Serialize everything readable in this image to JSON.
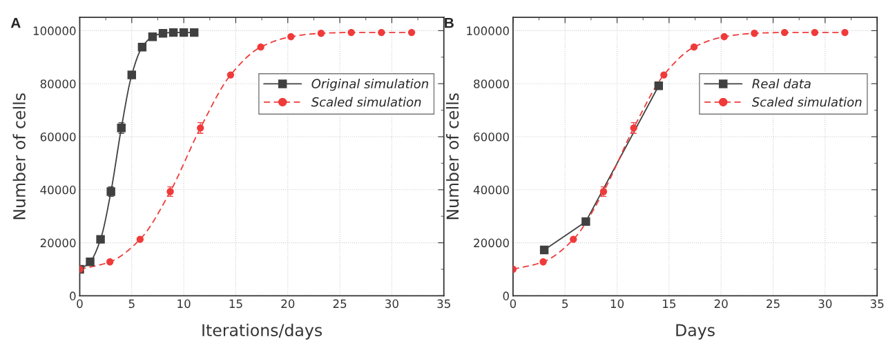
{
  "chart_data": [
    {
      "type": "line",
      "title": "A",
      "xlabel": "Iterations/days",
      "ylabel": "Number of cells",
      "xlim": [
        0,
        35
      ],
      "xticks": [
        0,
        5,
        10,
        15,
        20,
        25,
        30,
        35
      ],
      "ylim": [
        0,
        105000
      ],
      "yticks": [
        0,
        20000,
        40000,
        60000,
        80000,
        100000
      ],
      "grid": true,
      "legend": "top right",
      "series": [
        {
          "name": "Original simulation",
          "color": "#404040",
          "marker": "square",
          "line_style": "solid",
          "x": [
            0,
            1,
            2,
            3,
            4,
            5,
            6,
            7,
            8,
            9,
            10,
            11
          ],
          "values": [
            10000,
            12800,
            21300,
            39300,
            63300,
            83300,
            93800,
            97700,
            99000,
            99300,
            99300,
            99300
          ],
          "errors": [
            null,
            null,
            null,
            1800,
            2000,
            null,
            null,
            null,
            null,
            null,
            null,
            null
          ]
        },
        {
          "name": "Scaled simulation",
          "color": "#f03a3a",
          "marker": "circle",
          "line_style": "dashed",
          "x": [
            0,
            2.9,
            5.8,
            8.7,
            11.6,
            14.5,
            17.4,
            20.3,
            23.2,
            26.1,
            29,
            31.9
          ],
          "values": [
            10000,
            12800,
            21300,
            39300,
            63300,
            83300,
            93800,
            97700,
            99000,
            99300,
            99300,
            99300
          ],
          "errors": [
            null,
            null,
            null,
            1800,
            2000,
            null,
            null,
            null,
            null,
            null,
            null,
            null
          ]
        }
      ]
    },
    {
      "type": "line",
      "title": "B",
      "xlabel": "Days",
      "ylabel": "Number of cells",
      "xlim": [
        0,
        35
      ],
      "xticks": [
        0,
        5,
        10,
        15,
        20,
        25,
        30,
        35
      ],
      "ylim": [
        0,
        105000
      ],
      "yticks": [
        0,
        20000,
        40000,
        60000,
        80000,
        100000
      ],
      "grid": true,
      "legend": "top right",
      "series": [
        {
          "name": "Real data",
          "color": "#404040",
          "marker": "square",
          "line_style": "solid",
          "x": [
            3,
            7,
            14
          ],
          "values": [
            17300,
            28000,
            79200
          ]
        },
        {
          "name": "Scaled simulation",
          "color": "#f03a3a",
          "marker": "circle",
          "line_style": "dashed",
          "x": [
            0,
            2.9,
            5.8,
            8.7,
            11.6,
            14.5,
            17.4,
            20.3,
            23.2,
            26.1,
            29,
            31.9
          ],
          "values": [
            10000,
            12800,
            21300,
            39300,
            63300,
            83300,
            93800,
            97700,
            99000,
            99300,
            99300,
            99300
          ],
          "errors": [
            null,
            null,
            null,
            1800,
            2000,
            null,
            null,
            null,
            null,
            null,
            null,
            null
          ]
        }
      ]
    }
  ]
}
